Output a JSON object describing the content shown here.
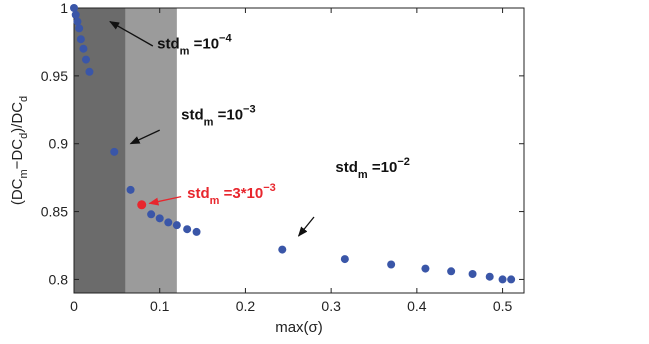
{
  "chart_data": {
    "type": "scatter",
    "xlabel": "max(σ)",
    "ylabel": "(DC_m−DC_d)/DC_d",
    "xlim": [
      0,
      0.525
    ],
    "ylim": [
      0.79,
      1.0
    ],
    "x_ticks": [
      0,
      0.1,
      0.2,
      0.3,
      0.4,
      0.5
    ],
    "x_tick_labels": [
      "0",
      "0.1",
      "0.2",
      "0.3",
      "0.4",
      "0.5"
    ],
    "y_ticks": [
      0.8,
      0.85,
      0.9,
      0.95,
      1.0
    ],
    "y_tick_labels": [
      "0.8",
      "0.85",
      "0.9",
      "0.95",
      "1"
    ],
    "grid": false,
    "shaded_regions": [
      {
        "x": [
          0,
          0.06
        ],
        "color": "#6b6b6b"
      },
      {
        "x": [
          0.06,
          0.12
        ],
        "color": "#9b9b9b"
      }
    ],
    "series": [
      {
        "color": "#3a56a8",
        "x": [
          0.0,
          0.002,
          0.004,
          0.006,
          0.008,
          0.011,
          0.014,
          0.018,
          0.047,
          0.066,
          0.09,
          0.1,
          0.11,
          0.12,
          0.132,
          0.143,
          0.243,
          0.316,
          0.37,
          0.41,
          0.44,
          0.465,
          0.485,
          0.5,
          0.51
        ],
        "y": [
          1.0,
          0.995,
          0.99,
          0.985,
          0.977,
          0.97,
          0.962,
          0.953,
          0.894,
          0.866,
          0.848,
          0.845,
          0.842,
          0.84,
          0.837,
          0.835,
          0.822,
          0.815,
          0.811,
          0.808,
          0.806,
          0.804,
          0.802,
          0.8,
          0.8
        ]
      },
      {
        "color": "#e8262d",
        "x": [
          0.079
        ],
        "y": [
          0.855
        ]
      }
    ],
    "annotations": [
      {
        "base": "std",
        "sub": "m",
        "mid": " =10",
        "sup": "−4",
        "color": "#111111",
        "x": 0.097,
        "y": 0.97,
        "arrow_from": [
          0.092,
          0.972
        ],
        "arrow_to": [
          0.042,
          0.99
        ]
      },
      {
        "base": "std",
        "sub": "m",
        "mid": " =10",
        "sup": "−3",
        "color": "#111111",
        "x": 0.125,
        "y": 0.918,
        "arrow_from": [
          0.1,
          0.91
        ],
        "arrow_to": [
          0.066,
          0.9
        ]
      },
      {
        "base": "std",
        "sub": "m",
        "mid": " =3*10",
        "sup": "−3",
        "color": "#e8262d",
        "x": 0.132,
        "y": 0.86,
        "arrow_from": [
          0.125,
          0.861
        ],
        "arrow_to": [
          0.088,
          0.856
        ]
      },
      {
        "base": "std",
        "sub": "m",
        "mid": " =10",
        "sup": "−2",
        "color": "#111111",
        "x": 0.305,
        "y": 0.879,
        "arrow_from": [
          0.28,
          0.846
        ],
        "arrow_to": [
          0.262,
          0.832
        ]
      }
    ]
  }
}
